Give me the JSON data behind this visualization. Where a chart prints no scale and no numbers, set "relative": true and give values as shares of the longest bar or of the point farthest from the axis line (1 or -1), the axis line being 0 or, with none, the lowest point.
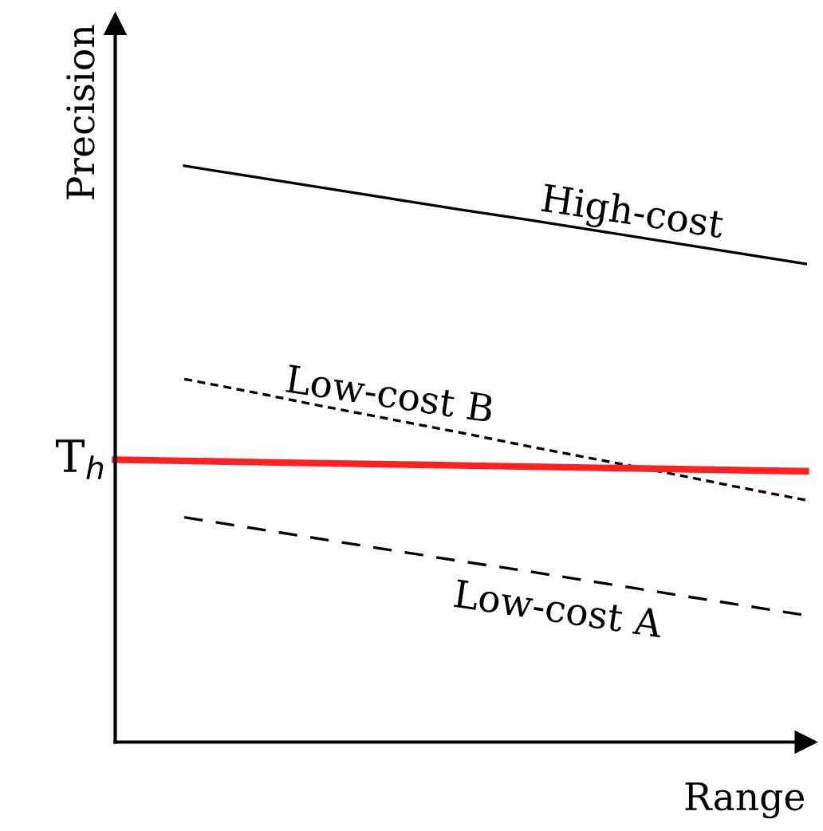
{
  "chart_data": {
    "type": "line",
    "relative": true,
    "xlabel": "Range",
    "ylabel": "Precision",
    "categories": [
      null,
      null,
      null,
      null,
      null,
      null,
      null,
      null,
      null,
      null,
      null
    ],
    "series": [
      {
        "name": "High-cost",
        "color": "#000000",
        "line_style": "solid",
        "values": [
          null,
          1.0,
          0.981,
          0.962,
          0.943,
          0.924,
          0.906,
          0.887,
          0.868,
          0.849,
          0.83
        ]
      },
      {
        "name": "Low-cost B",
        "color": "#000000",
        "line_style": "dotted",
        "values": [
          null,
          0.63,
          0.607,
          0.583,
          0.56,
          0.537,
          0.513,
          0.49,
          0.467,
          0.443,
          0.42
        ]
      },
      {
        "name": "T$_{h}$",
        "color": "#ff2020",
        "line_style": "solid",
        "values": [
          0.49,
          0.488,
          0.486,
          0.484,
          0.482,
          0.48,
          0.478,
          0.476,
          0.474,
          0.472,
          0.47
        ]
      },
      {
        "name": "Low-cost A",
        "color": "#000000",
        "line_style": "dashed",
        "values": [
          null,
          0.39,
          0.371,
          0.352,
          0.333,
          0.314,
          0.296,
          0.277,
          0.258,
          0.239,
          0.22
        ]
      }
    ]
  }
}
